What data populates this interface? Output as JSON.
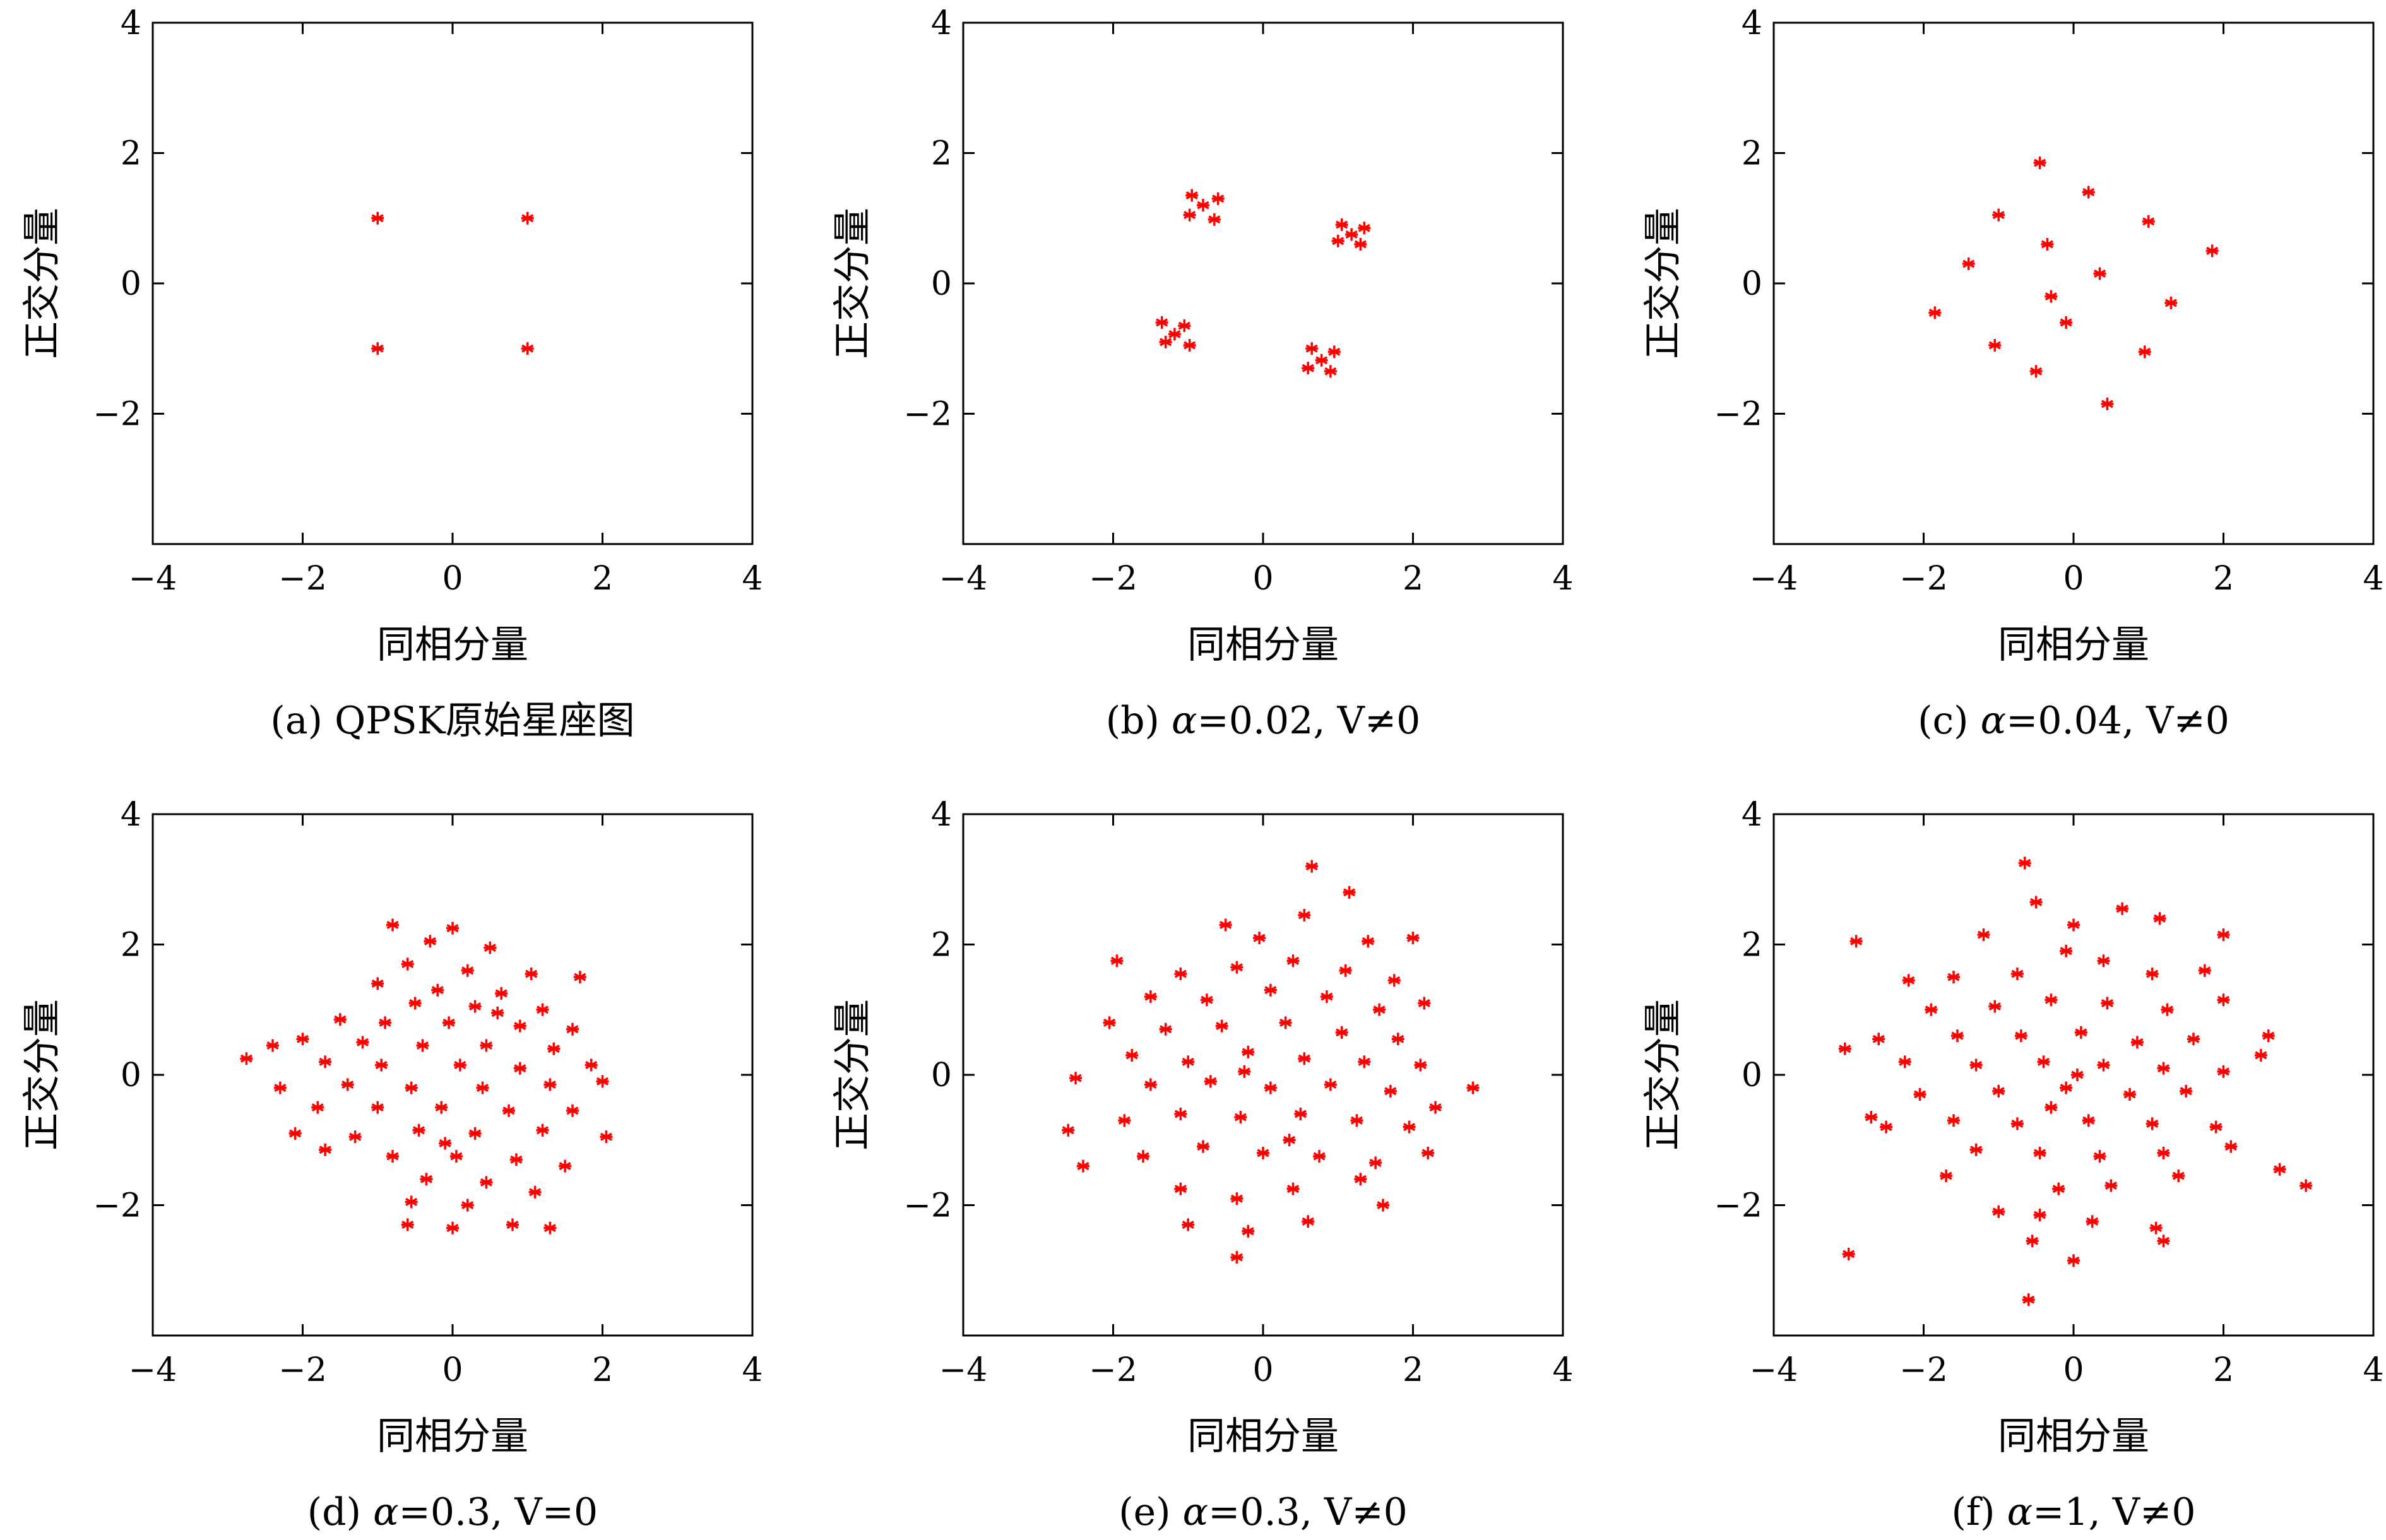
{
  "colors": {
    "marker": "#ff0000",
    "axis": "#000000",
    "background": "#ffffff"
  },
  "marker_symbol": "*",
  "chart_data": [
    {
      "id": "a",
      "type": "scatter",
      "caption_prefix": "(a) ",
      "caption_alpha": "",
      "caption_text": "QPSK原始星座图",
      "xlabel": "同相分量",
      "ylabel": "正交分量",
      "xlim": [
        -4,
        4
      ],
      "ylim": [
        -4,
        4
      ],
      "xticks": [
        "−4",
        "−2",
        "0",
        "2",
        "4"
      ],
      "yticks": [
        "−2",
        "0",
        "2",
        "4"
      ],
      "grid": false,
      "legend": "none",
      "points": [
        [
          -1,
          1
        ],
        [
          1,
          1
        ],
        [
          -1,
          -1
        ],
        [
          1,
          -1
        ]
      ]
    },
    {
      "id": "b",
      "type": "scatter",
      "caption_prefix": "(b) ",
      "caption_alpha": "α",
      "caption_text": "=0.02, V≠0",
      "xlabel": "同相分量",
      "ylabel": "正交分量",
      "xlim": [
        -4,
        4
      ],
      "ylim": [
        -4,
        4
      ],
      "xticks": [
        "−4",
        "−2",
        "0",
        "2",
        "4"
      ],
      "yticks": [
        "−2",
        "0",
        "2",
        "4"
      ],
      "grid": false,
      "legend": "none",
      "points": [
        [
          -0.95,
          1.35
        ],
        [
          -0.6,
          1.3
        ],
        [
          -0.98,
          1.05
        ],
        [
          -0.65,
          0.98
        ],
        [
          -0.8,
          1.2
        ],
        [
          1.05,
          0.9
        ],
        [
          1.35,
          0.85
        ],
        [
          1.0,
          0.65
        ],
        [
          1.3,
          0.6
        ],
        [
          1.18,
          0.75
        ],
        [
          -1.35,
          -0.6
        ],
        [
          -1.05,
          -0.65
        ],
        [
          -1.3,
          -0.9
        ],
        [
          -0.98,
          -0.95
        ],
        [
          -1.18,
          -0.78
        ],
        [
          0.65,
          -1.0
        ],
        [
          0.95,
          -1.05
        ],
        [
          0.6,
          -1.3
        ],
        [
          0.9,
          -1.35
        ],
        [
          0.78,
          -1.18
        ]
      ]
    },
    {
      "id": "c",
      "type": "scatter",
      "caption_prefix": "(c) ",
      "caption_alpha": "α",
      "caption_text": "=0.04, V≠0",
      "xlabel": "同相分量",
      "ylabel": "正交分量",
      "xlim": [
        -4,
        4
      ],
      "ylim": [
        -4,
        4
      ],
      "xticks": [
        "−4",
        "−2",
        "0",
        "2",
        "4"
      ],
      "yticks": [
        "−2",
        "0",
        "2",
        "4"
      ],
      "grid": false,
      "legend": "none",
      "points": [
        [
          -0.45,
          1.85
        ],
        [
          0.2,
          1.4
        ],
        [
          1.0,
          0.95
        ],
        [
          1.85,
          0.5
        ],
        [
          -1.0,
          1.05
        ],
        [
          -0.35,
          0.6
        ],
        [
          0.35,
          0.15
        ],
        [
          1.3,
          -0.3
        ],
        [
          -1.4,
          0.3
        ],
        [
          -0.3,
          -0.2
        ],
        [
          -0.1,
          -0.6
        ],
        [
          0.95,
          -1.05
        ],
        [
          -1.85,
          -0.45
        ],
        [
          -1.05,
          -0.95
        ],
        [
          -0.5,
          -1.35
        ],
        [
          0.45,
          -1.85
        ]
      ]
    },
    {
      "id": "d",
      "type": "scatter",
      "caption_prefix": "(d) ",
      "caption_alpha": "α",
      "caption_text": "=0.3, V=0",
      "xlabel": "同相分量",
      "ylabel": "正交分量",
      "xlim": [
        -4,
        4
      ],
      "ylim": [
        -4,
        4
      ],
      "xticks": [
        "−4",
        "−2",
        "0",
        "2",
        "4"
      ],
      "yticks": [
        "−2",
        "0",
        "2",
        "4"
      ],
      "grid": false,
      "legend": "none",
      "points": [
        [
          -0.8,
          2.3
        ],
        [
          0.0,
          2.25
        ],
        [
          -0.3,
          2.05
        ],
        [
          0.5,
          1.95
        ],
        [
          -0.6,
          1.7
        ],
        [
          0.2,
          1.6
        ],
        [
          1.05,
          1.55
        ],
        [
          1.7,
          1.5
        ],
        [
          -1.0,
          1.4
        ],
        [
          -0.2,
          1.3
        ],
        [
          0.65,
          1.25
        ],
        [
          -0.5,
          1.1
        ],
        [
          0.3,
          1.05
        ],
        [
          1.2,
          1.0
        ],
        [
          -1.5,
          0.85
        ],
        [
          -0.9,
          0.8
        ],
        [
          -0.05,
          0.8
        ],
        [
          0.9,
          0.75
        ],
        [
          1.6,
          0.7
        ],
        [
          -2.0,
          0.55
        ],
        [
          -1.2,
          0.5
        ],
        [
          -0.4,
          0.45
        ],
        [
          0.45,
          0.45
        ],
        [
          1.35,
          0.4
        ],
        [
          -2.75,
          0.25
        ],
        [
          -2.4,
          0.45
        ],
        [
          -1.7,
          0.2
        ],
        [
          -0.95,
          0.15
        ],
        [
          0.1,
          0.15
        ],
        [
          0.9,
          0.1
        ],
        [
          1.85,
          0.15
        ],
        [
          -2.3,
          -0.2
        ],
        [
          -1.4,
          -0.15
        ],
        [
          -0.55,
          -0.2
        ],
        [
          0.4,
          -0.2
        ],
        [
          1.3,
          -0.15
        ],
        [
          2.0,
          -0.1
        ],
        [
          -1.8,
          -0.5
        ],
        [
          -1.0,
          -0.5
        ],
        [
          -0.15,
          -0.5
        ],
        [
          0.75,
          -0.55
        ],
        [
          1.6,
          -0.55
        ],
        [
          -2.1,
          -0.9
        ],
        [
          -1.3,
          -0.95
        ],
        [
          -0.45,
          -0.85
        ],
        [
          0.3,
          -0.9
        ],
        [
          1.2,
          -0.85
        ],
        [
          2.05,
          -0.95
        ],
        [
          -1.7,
          -1.15
        ],
        [
          -0.8,
          -1.25
        ],
        [
          0.05,
          -1.25
        ],
        [
          0.85,
          -1.3
        ],
        [
          1.5,
          -1.4
        ],
        [
          -0.35,
          -1.6
        ],
        [
          0.45,
          -1.65
        ],
        [
          1.1,
          -1.8
        ],
        [
          -0.55,
          -1.95
        ],
        [
          0.2,
          -2.0
        ],
        [
          -0.6,
          -2.3
        ],
        [
          0.0,
          -2.35
        ],
        [
          0.8,
          -2.3
        ],
        [
          1.3,
          -2.35
        ],
        [
          -0.1,
          -1.05
        ],
        [
          0.6,
          0.95
        ]
      ]
    },
    {
      "id": "e",
      "type": "scatter",
      "caption_prefix": "(e) ",
      "caption_alpha": "α",
      "caption_text": "=0.3, V≠0",
      "xlabel": "同相分量",
      "ylabel": "正交分量",
      "xlim": [
        -4,
        4
      ],
      "ylim": [
        -4,
        4
      ],
      "xticks": [
        "−4",
        "−2",
        "0",
        "2",
        "4"
      ],
      "yticks": [
        "−2",
        "0",
        "2",
        "4"
      ],
      "grid": false,
      "legend": "none",
      "points": [
        [
          0.65,
          3.2
        ],
        [
          1.15,
          2.8
        ],
        [
          0.55,
          2.45
        ],
        [
          -0.5,
          2.3
        ],
        [
          -0.05,
          2.1
        ],
        [
          1.4,
          2.05
        ],
        [
          2.0,
          2.1
        ],
        [
          -1.95,
          1.75
        ],
        [
          -1.1,
          1.55
        ],
        [
          -0.35,
          1.65
        ],
        [
          0.4,
          1.75
        ],
        [
          1.1,
          1.6
        ],
        [
          1.75,
          1.45
        ],
        [
          -1.5,
          1.2
        ],
        [
          -0.75,
          1.15
        ],
        [
          0.1,
          1.3
        ],
        [
          0.85,
          1.2
        ],
        [
          1.55,
          1.0
        ],
        [
          2.15,
          1.1
        ],
        [
          -2.05,
          0.8
        ],
        [
          -1.3,
          0.7
        ],
        [
          -0.55,
          0.75
        ],
        [
          0.3,
          0.8
        ],
        [
          1.05,
          0.65
        ],
        [
          1.8,
          0.55
        ],
        [
          -1.75,
          0.3
        ],
        [
          -1.0,
          0.2
        ],
        [
          -0.2,
          0.35
        ],
        [
          0.55,
          0.25
        ],
        [
          1.35,
          0.2
        ],
        [
          2.1,
          0.15
        ],
        [
          -2.5,
          -0.05
        ],
        [
          -1.5,
          -0.15
        ],
        [
          -0.7,
          -0.1
        ],
        [
          0.1,
          -0.2
        ],
        [
          0.9,
          -0.15
        ],
        [
          1.7,
          -0.25
        ],
        [
          2.8,
          -0.2
        ],
        [
          2.3,
          -0.5
        ],
        [
          -2.6,
          -0.85
        ],
        [
          -1.85,
          -0.7
        ],
        [
          -1.1,
          -0.6
        ],
        [
          -0.3,
          -0.65
        ],
        [
          0.5,
          -0.6
        ],
        [
          1.25,
          -0.7
        ],
        [
          1.95,
          -0.8
        ],
        [
          -2.4,
          -1.4
        ],
        [
          -1.6,
          -1.25
        ],
        [
          -0.8,
          -1.1
        ],
        [
          0.0,
          -1.2
        ],
        [
          0.75,
          -1.25
        ],
        [
          1.5,
          -1.35
        ],
        [
          2.2,
          -1.2
        ],
        [
          -1.1,
          -1.75
        ],
        [
          -0.35,
          -1.9
        ],
        [
          0.4,
          -1.75
        ],
        [
          1.3,
          -1.6
        ],
        [
          -1.0,
          -2.3
        ],
        [
          -0.2,
          -2.4
        ],
        [
          0.6,
          -2.25
        ],
        [
          1.6,
          -2.0
        ],
        [
          -0.35,
          -2.8
        ],
        [
          -0.25,
          0.05
        ],
        [
          0.35,
          -1.0
        ]
      ]
    },
    {
      "id": "f",
      "type": "scatter",
      "caption_prefix": "(f) ",
      "caption_alpha": "α",
      "caption_text": "=1, V≠0",
      "xlabel": "同相分量",
      "ylabel": "正交分量",
      "xlim": [
        -4,
        4
      ],
      "ylim": [
        -4,
        4
      ],
      "xticks": [
        "−4",
        "−2",
        "0",
        "2",
        "4"
      ],
      "yticks": [
        "−2",
        "0",
        "2",
        "4"
      ],
      "grid": false,
      "legend": "none",
      "points": [
        [
          -0.65,
          3.25
        ],
        [
          -0.5,
          2.65
        ],
        [
          -2.9,
          2.05
        ],
        [
          -1.2,
          2.15
        ],
        [
          0.0,
          2.3
        ],
        [
          0.65,
          2.55
        ],
        [
          1.15,
          2.4
        ],
        [
          2.0,
          2.15
        ],
        [
          -0.1,
          1.9
        ],
        [
          0.4,
          1.75
        ],
        [
          -2.2,
          1.45
        ],
        [
          -1.6,
          1.5
        ],
        [
          -0.75,
          1.55
        ],
        [
          1.05,
          1.55
        ],
        [
          1.75,
          1.6
        ],
        [
          -1.9,
          1.0
        ],
        [
          -1.05,
          1.05
        ],
        [
          -0.3,
          1.15
        ],
        [
          0.45,
          1.1
        ],
        [
          1.25,
          1.0
        ],
        [
          2.0,
          1.15
        ],
        [
          -2.6,
          0.55
        ],
        [
          -1.55,
          0.6
        ],
        [
          -0.7,
          0.6
        ],
        [
          0.1,
          0.65
        ],
        [
          0.85,
          0.5
        ],
        [
          1.6,
          0.55
        ],
        [
          2.6,
          0.6
        ],
        [
          -3.05,
          0.4
        ],
        [
          -2.25,
          0.2
        ],
        [
          -1.3,
          0.15
        ],
        [
          -0.4,
          0.2
        ],
        [
          0.4,
          0.15
        ],
        [
          1.2,
          0.1
        ],
        [
          2.0,
          0.05
        ],
        [
          2.5,
          0.3
        ],
        [
          -2.05,
          -0.3
        ],
        [
          -1.0,
          -0.25
        ],
        [
          -0.1,
          -0.2
        ],
        [
          0.75,
          -0.3
        ],
        [
          1.5,
          -0.25
        ],
        [
          -2.7,
          -0.65
        ],
        [
          -2.5,
          -0.8
        ],
        [
          -1.6,
          -0.7
        ],
        [
          -0.75,
          -0.75
        ],
        [
          0.2,
          -0.7
        ],
        [
          1.05,
          -0.75
        ],
        [
          1.9,
          -0.8
        ],
        [
          -1.3,
          -1.15
        ],
        [
          -0.45,
          -1.2
        ],
        [
          0.35,
          -1.25
        ],
        [
          1.2,
          -1.2
        ],
        [
          2.1,
          -1.1
        ],
        [
          -1.7,
          -1.55
        ],
        [
          -0.2,
          -1.75
        ],
        [
          0.5,
          -1.7
        ],
        [
          1.4,
          -1.55
        ],
        [
          2.75,
          -1.45
        ],
        [
          3.1,
          -1.7
        ],
        [
          -1.0,
          -2.1
        ],
        [
          -0.55,
          -2.55
        ],
        [
          0.25,
          -2.25
        ],
        [
          1.1,
          -2.35
        ],
        [
          -0.45,
          -2.15
        ],
        [
          -3.0,
          -2.75
        ],
        [
          0.0,
          -2.85
        ],
        [
          -0.6,
          -3.45
        ],
        [
          1.2,
          -2.55
        ],
        [
          0.05,
          0.0
        ],
        [
          -0.3,
          -0.5
        ]
      ]
    }
  ]
}
